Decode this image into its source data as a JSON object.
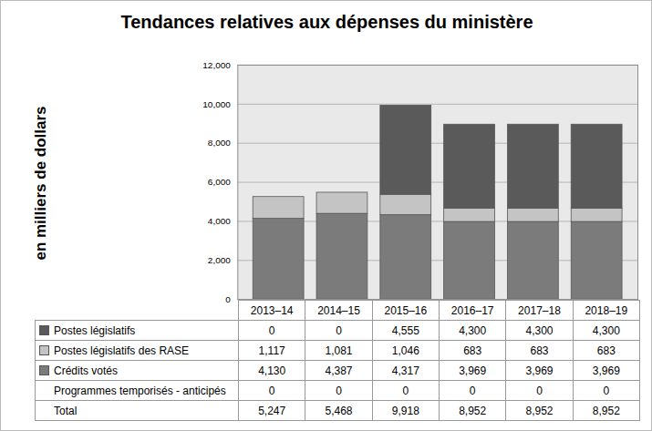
{
  "chart_data": {
    "type": "bar",
    "title": "Tendances relatives aux dépenses du ministère",
    "y_label": "en milliers de dollars",
    "stacked": true,
    "grid": true,
    "categories": [
      "2013–14",
      "2014–15",
      "2015–16",
      "2016–17",
      "2017–18",
      "2018–19"
    ],
    "series": [
      {
        "name": "Postes législatifs",
        "color": "#5a5a5a",
        "values": [
          0,
          0,
          4555,
          4300,
          4300,
          4300
        ]
      },
      {
        "name": "Postes législatifs des RASE",
        "color": "#c4c4c4",
        "values": [
          1117,
          1081,
          1046,
          683,
          683,
          683
        ]
      },
      {
        "name": "Crédits votés",
        "color": "#7b7b7b",
        "values": [
          4130,
          4387,
          4317,
          3969,
          3969,
          3969
        ]
      },
      {
        "name": "Programmes temporisés - anticipés",
        "values": [
          0,
          0,
          0,
          0,
          0,
          0
        ]
      }
    ],
    "totals": {
      "name": "Total",
      "values": [
        5247,
        5468,
        9918,
        8952,
        8952,
        8952
      ]
    },
    "ylim": [
      0,
      12000
    ],
    "yticks": [
      0,
      {
        "value": 2000,
        "label": "2,000"
      },
      {
        "value": 4000,
        "label": "4,000"
      },
      {
        "value": 6000,
        "label": "6,000"
      },
      {
        "value": 8000,
        "label": "8,000"
      },
      {
        "value": 10000,
        "label": "10,000"
      },
      {
        "value": 12000,
        "label": "12,000"
      }
    ]
  }
}
